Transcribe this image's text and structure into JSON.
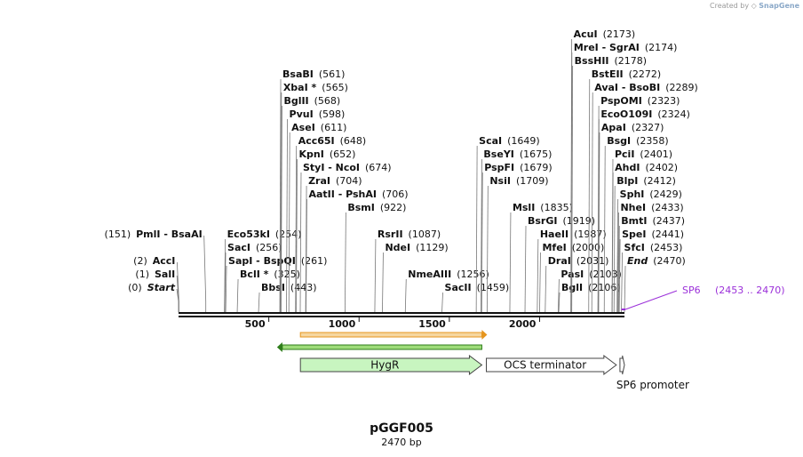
{
  "credit": {
    "prefix": "Created by",
    "brand": "SnapGene"
  },
  "plasmid": {
    "name": "pGGF005",
    "size_label": "2470 bp",
    "length": 2470
  },
  "ticks": [
    {
      "pos": 500,
      "label": "500"
    },
    {
      "pos": 1000,
      "label": "1000"
    },
    {
      "pos": 1500,
      "label": "1500"
    },
    {
      "pos": 2000,
      "label": "2000"
    }
  ],
  "sites": [
    {
      "names": [
        "Start"
      ],
      "pos_label": "(0)",
      "pos": 0,
      "italic": true,
      "label_side": "left",
      "row": 0
    },
    {
      "names": [
        "SalI"
      ],
      "pos_label": "(1)",
      "pos": 1,
      "label_side": "left",
      "row": 1
    },
    {
      "names": [
        "AccI"
      ],
      "pos_label": "(2)",
      "pos": 2,
      "label_side": "left",
      "row": 2
    },
    {
      "names": [
        "PmlI",
        "BsaAI"
      ],
      "pos_label": "(151)",
      "pos": 151,
      "label_side": "left",
      "row": 4
    },
    {
      "names": [
        "BbsI"
      ],
      "pos_label": "(443)",
      "pos": 443,
      "label_side": "right",
      "row": 0
    },
    {
      "names": [
        "BclI *"
      ],
      "pos_label": "(325)",
      "pos": 325,
      "label_side": "right",
      "row": 1
    },
    {
      "names": [
        "SapI",
        "BspQI"
      ],
      "pos_label": "(261)",
      "pos": 261,
      "label_side": "right",
      "row": 2
    },
    {
      "names": [
        "SacI"
      ],
      "pos_label": "(256)",
      "pos": 256,
      "label_side": "right",
      "row": 3
    },
    {
      "names": [
        "Eco53kI"
      ],
      "pos_label": "(254)",
      "pos": 254,
      "label_side": "right",
      "row": 4
    },
    {
      "names": [
        "BsaBI"
      ],
      "pos_label": "(561)",
      "pos": 561,
      "label_side": "right",
      "row": 16
    },
    {
      "names": [
        "XbaI *"
      ],
      "pos_label": "(565)",
      "pos": 565,
      "label_side": "right",
      "row": 15
    },
    {
      "names": [
        "BglII"
      ],
      "pos_label": "(568)",
      "pos": 568,
      "label_side": "right",
      "row": 14
    },
    {
      "names": [
        "PvuI"
      ],
      "pos_label": "(598)",
      "pos": 598,
      "label_side": "right",
      "row": 13
    },
    {
      "names": [
        "AseI"
      ],
      "pos_label": "(611)",
      "pos": 611,
      "label_side": "right",
      "row": 12
    },
    {
      "names": [
        "Acc65I"
      ],
      "pos_label": "(648)",
      "pos": 648,
      "label_side": "right",
      "row": 11
    },
    {
      "names": [
        "KpnI"
      ],
      "pos_label": "(652)",
      "pos": 652,
      "label_side": "right",
      "row": 10
    },
    {
      "names": [
        "StyI",
        "NcoI"
      ],
      "pos_label": "(674)",
      "pos": 674,
      "label_side": "right",
      "row": 9
    },
    {
      "names": [
        "ZraI"
      ],
      "pos_label": "(704)",
      "pos": 704,
      "label_side": "right",
      "row": 8
    },
    {
      "names": [
        "AatII",
        "PshAI"
      ],
      "pos_label": "(706)",
      "pos": 706,
      "label_side": "right",
      "row": 7
    },
    {
      "names": [
        "BsmI"
      ],
      "pos_label": "(922)",
      "pos": 922,
      "label_side": "right",
      "row": 6
    },
    {
      "names": [
        "RsrII"
      ],
      "pos_label": "(1087)",
      "pos": 1087,
      "label_side": "right",
      "row": 4
    },
    {
      "names": [
        "NdeI"
      ],
      "pos_label": "(1129)",
      "pos": 1129,
      "label_side": "right",
      "row": 3
    },
    {
      "names": [
        "NmeAIII"
      ],
      "pos_label": "(1256)",
      "pos": 1256,
      "label_side": "right",
      "row": 1
    },
    {
      "names": [
        "SacII"
      ],
      "pos_label": "(1459)",
      "pos": 1459,
      "label_side": "right",
      "row": 0
    },
    {
      "names": [
        "ScaI"
      ],
      "pos_label": "(1649)",
      "pos": 1649,
      "label_side": "right",
      "row": 11
    },
    {
      "names": [
        "BseYI"
      ],
      "pos_label": "(1675)",
      "pos": 1675,
      "label_side": "right",
      "row": 10
    },
    {
      "names": [
        "PspFI"
      ],
      "pos_label": "(1679)",
      "pos": 1679,
      "label_side": "right",
      "row": 9
    },
    {
      "names": [
        "NsiI"
      ],
      "pos_label": "(1709)",
      "pos": 1709,
      "label_side": "right",
      "row": 8
    },
    {
      "names": [
        "MslI"
      ],
      "pos_label": "(1835)",
      "pos": 1835,
      "label_side": "right",
      "row": 6
    },
    {
      "names": [
        "BsrGI"
      ],
      "pos_label": "(1919)",
      "pos": 1919,
      "label_side": "right",
      "row": 5
    },
    {
      "names": [
        "HaeII"
      ],
      "pos_label": "(1987)",
      "pos": 1987,
      "label_side": "right",
      "row": 4
    },
    {
      "names": [
        "MfeI"
      ],
      "pos_label": "(2000)",
      "pos": 2000,
      "label_side": "right",
      "row": 3
    },
    {
      "names": [
        "DraI"
      ],
      "pos_label": "(2031)",
      "pos": 2031,
      "label_side": "right",
      "row": 2
    },
    {
      "names": [
        "PasI"
      ],
      "pos_label": "(2103)",
      "pos": 2103,
      "label_side": "right",
      "row": 1
    },
    {
      "names": [
        "BglI"
      ],
      "pos_label": "(2106)",
      "pos": 2106,
      "label_side": "right",
      "row": 0
    },
    {
      "names": [
        "AcuI"
      ],
      "pos_label": "(2173)",
      "pos": 2173,
      "label_side": "right",
      "row": 19
    },
    {
      "names": [
        "MreI",
        "SgrAI"
      ],
      "pos_label": "(2174)",
      "pos": 2174,
      "label_side": "right",
      "row": 18
    },
    {
      "names": [
        "BssHII"
      ],
      "pos_label": "(2178)",
      "pos": 2178,
      "label_side": "right",
      "row": 17
    },
    {
      "names": [
        "BstEII"
      ],
      "pos_label": "(2272)",
      "pos": 2272,
      "label_side": "right",
      "row": 16
    },
    {
      "names": [
        "AvaI",
        "BsoBI"
      ],
      "pos_label": "(2289)",
      "pos": 2289,
      "label_side": "right",
      "row": 15
    },
    {
      "names": [
        "PspOMI"
      ],
      "pos_label": "(2323)",
      "pos": 2323,
      "label_side": "right",
      "row": 14
    },
    {
      "names": [
        "EcoO109I"
      ],
      "pos_label": "(2324)",
      "pos": 2324,
      "label_side": "right",
      "row": 13
    },
    {
      "names": [
        "ApaI"
      ],
      "pos_label": "(2327)",
      "pos": 2327,
      "label_side": "right",
      "row": 12
    },
    {
      "names": [
        "BsgI"
      ],
      "pos_label": "(2358)",
      "pos": 2358,
      "label_side": "right",
      "row": 11
    },
    {
      "names": [
        "PciI"
      ],
      "pos_label": "(2401)",
      "pos": 2401,
      "label_side": "right",
      "row": 10
    },
    {
      "names": [
        "AhdI"
      ],
      "pos_label": "(2402)",
      "pos": 2402,
      "label_side": "right",
      "row": 9
    },
    {
      "names": [
        "BlpI"
      ],
      "pos_label": "(2412)",
      "pos": 2412,
      "label_side": "right",
      "row": 8
    },
    {
      "names": [
        "SphI"
      ],
      "pos_label": "(2429)",
      "pos": 2429,
      "label_side": "right",
      "row": 7
    },
    {
      "names": [
        "NheI"
      ],
      "pos_label": "(2433)",
      "pos": 2433,
      "label_side": "right",
      "row": 6
    },
    {
      "names": [
        "BmtI"
      ],
      "pos_label": "(2437)",
      "pos": 2437,
      "label_side": "right",
      "row": 5
    },
    {
      "names": [
        "SpeI"
      ],
      "pos_label": "(2441)",
      "pos": 2441,
      "label_side": "right",
      "row": 4
    },
    {
      "names": [
        "SfcI"
      ],
      "pos_label": "(2453)",
      "pos": 2453,
      "label_side": "right",
      "row": 3
    },
    {
      "names": [
        "End"
      ],
      "pos_label": "(2470)",
      "pos": 2470,
      "italic": true,
      "label_side": "right",
      "row": 2
    }
  ],
  "primer": {
    "name": "SP6",
    "range_label": "(2453 .. 2470)",
    "start": 2453,
    "end": 2470,
    "color": "#9b30d9"
  },
  "orange_bar": {
    "start": 675,
    "end": 1680,
    "color": "#e6951e",
    "fill": "#f6d7a0"
  },
  "green_bar": {
    "start": 575,
    "end": 1680,
    "color": "#2e7d1a",
    "fill": "#9edc7a"
  },
  "features": [
    {
      "name": "HygR",
      "start": 675,
      "end": 1680,
      "direction": "forward",
      "fill": "#c8f5c0",
      "stroke": "#444444",
      "label_pos": "inside"
    },
    {
      "name": "OCS terminator",
      "start": 1705,
      "end": 2425,
      "direction": "forward",
      "fill": "#ffffff",
      "stroke": "#444444",
      "label_pos": "inside"
    },
    {
      "name": "SP6 promoter",
      "start": 2445,
      "end": 2470,
      "direction": "forward",
      "fill": "#ffffff",
      "stroke": "#444444",
      "label_pos": "below"
    }
  ]
}
